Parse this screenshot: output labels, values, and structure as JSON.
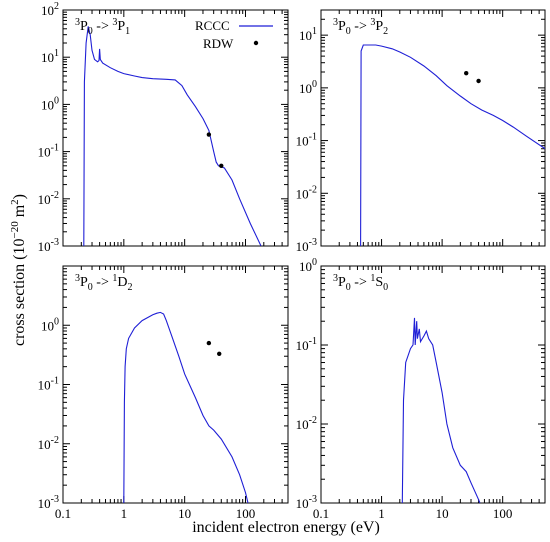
{
  "figure": {
    "xlabel": "incident electron energy (eV)",
    "ylabel_parts": {
      "base": "cross section (10",
      "exp": "−20",
      "mid": " m",
      "exp2": "2",
      "end": ")"
    }
  },
  "legend": {
    "rccc_label": "RCCC",
    "rdw_label": "RDW",
    "line_color": "#1f1fd6",
    "marker_color": "#000000"
  },
  "chart_data": [
    {
      "type": "line",
      "panel": "top-left",
      "label": {
        "a": "3",
        "b": "P",
        "c": "0",
        "arrow": " -> ",
        "d": "3",
        "e": "P",
        "f": "1"
      },
      "x_scale": "log",
      "y_scale": "log",
      "xlim": [
        0.1,
        500
      ],
      "ylim": [
        0.001,
        100
      ],
      "x_ticks": [
        "0.1",
        "1",
        "10",
        "100"
      ],
      "y_ticks": [
        {
          "base": "10",
          "exp": "-3"
        },
        {
          "base": "10",
          "exp": "-2"
        },
        {
          "base": "10",
          "exp": "-1"
        },
        {
          "base": "10",
          "exp": "0"
        },
        {
          "base": "10",
          "exp": "1"
        },
        {
          "base": "10",
          "exp": "2"
        }
      ],
      "series": [
        {
          "name": "RCCC",
          "points": [
            [
              0.22,
              0.001
            ],
            [
              0.225,
              3
            ],
            [
              0.24,
              20
            ],
            [
              0.26,
              45
            ],
            [
              0.28,
              30
            ],
            [
              0.3,
              14
            ],
            [
              0.33,
              9
            ],
            [
              0.37,
              8
            ],
            [
              0.39,
              8.5
            ],
            [
              0.4,
              15
            ],
            [
              0.41,
              9
            ],
            [
              0.45,
              7.5
            ],
            [
              0.6,
              6
            ],
            [
              0.8,
              5
            ],
            [
              1,
              4.5
            ],
            [
              1.5,
              4
            ],
            [
              2,
              3.7
            ],
            [
              3,
              3.5
            ],
            [
              5,
              3.4
            ],
            [
              7,
              3.3
            ],
            [
              9,
              2.5
            ],
            [
              11,
              1.6
            ],
            [
              15,
              0.9
            ],
            [
              20,
              0.5
            ],
            [
              25,
              0.28
            ],
            [
              30,
              0.1
            ],
            [
              33,
              0.06
            ],
            [
              36,
              0.05
            ],
            [
              45,
              0.045
            ],
            [
              60,
              0.025
            ],
            [
              80,
              0.01
            ],
            [
              120,
              0.003
            ],
            [
              180,
              0.001
            ]
          ]
        },
        {
          "name": "RDW",
          "points": [
            [
              25,
              0.23
            ],
            [
              40,
              0.05
            ]
          ]
        }
      ],
      "legend": "top-right",
      "grid": false
    },
    {
      "type": "line",
      "panel": "top-right",
      "label": {
        "a": "3",
        "b": "P",
        "c": "0",
        "arrow": " -> ",
        "d": "3",
        "e": "P",
        "f": "2"
      },
      "x_scale": "log",
      "y_scale": "log",
      "xlim": [
        0.1,
        500
      ],
      "ylim": [
        0.001,
        30
      ],
      "x_ticks": [
        "0.1",
        "1",
        "10",
        "100"
      ],
      "y_ticks": [
        {
          "base": "10",
          "exp": "-3"
        },
        {
          "base": "10",
          "exp": "-2"
        },
        {
          "base": "10",
          "exp": "-1"
        },
        {
          "base": "10",
          "exp": "0"
        },
        {
          "base": "10",
          "exp": "1"
        }
      ],
      "series": [
        {
          "name": "RCCC",
          "points": [
            [
              0.45,
              0.001
            ],
            [
              0.46,
              5
            ],
            [
              0.5,
              6.5
            ],
            [
              0.8,
              6.5
            ],
            [
              1,
              6.2
            ],
            [
              1.5,
              5.5
            ],
            [
              2,
              4.8
            ],
            [
              3,
              3.8
            ],
            [
              5,
              2.6
            ],
            [
              8,
              1.7
            ],
            [
              12,
              1.1
            ],
            [
              20,
              0.7
            ],
            [
              30,
              0.5
            ],
            [
              45,
              0.38
            ],
            [
              70,
              0.3
            ],
            [
              100,
              0.24
            ],
            [
              150,
              0.18
            ],
            [
              250,
              0.12
            ],
            [
              500,
              0.07
            ]
          ]
        },
        {
          "name": "RDW",
          "points": [
            [
              25,
              1.9
            ],
            [
              40,
              1.35
            ]
          ]
        }
      ],
      "grid": false
    },
    {
      "type": "line",
      "panel": "bottom-left",
      "label": {
        "a": "3",
        "b": "P",
        "c": "0",
        "arrow": " -> ",
        "d": "1",
        "e": "D",
        "f": "2"
      },
      "x_scale": "log",
      "y_scale": "log",
      "xlim": [
        0.1,
        500
      ],
      "ylim": [
        0.001,
        10
      ],
      "x_ticks": [
        "0.1",
        "1",
        "10",
        "100"
      ],
      "y_ticks": [
        {
          "base": "10",
          "exp": "-3"
        },
        {
          "base": "10",
          "exp": "-2"
        },
        {
          "base": "10",
          "exp": "-1"
        },
        {
          "base": "10",
          "exp": "0"
        }
      ],
      "series": [
        {
          "name": "RCCC",
          "points": [
            [
              1,
              0.001
            ],
            [
              1.02,
              0.05
            ],
            [
              1.05,
              0.2
            ],
            [
              1.1,
              0.4
            ],
            [
              1.2,
              0.6
            ],
            [
              1.5,
              0.9
            ],
            [
              2,
              1.2
            ],
            [
              3,
              1.5
            ],
            [
              3.5,
              1.6
            ],
            [
              4,
              1.65
            ],
            [
              4.5,
              1.55
            ],
            [
              5,
              1.2
            ],
            [
              6,
              0.7
            ],
            [
              8,
              0.3
            ],
            [
              10,
              0.15
            ],
            [
              15,
              0.06
            ],
            [
              20,
              0.03
            ],
            [
              25,
              0.02
            ],
            [
              30,
              0.017
            ],
            [
              40,
              0.012
            ],
            [
              60,
              0.006
            ],
            [
              80,
              0.003
            ],
            [
              100,
              0.0015
            ],
            [
              110,
              0.001
            ]
          ]
        },
        {
          "name": "RDW",
          "points": [
            [
              25,
              0.5
            ],
            [
              37,
              0.33
            ]
          ]
        }
      ],
      "grid": false
    },
    {
      "type": "line",
      "panel": "bottom-right",
      "label": {
        "a": "3",
        "b": "P",
        "c": "0",
        "arrow": " -> ",
        "d": "1",
        "e": "S",
        "f": "0"
      },
      "x_scale": "log",
      "y_scale": "log",
      "xlim": [
        0.1,
        500
      ],
      "ylim": [
        0.001,
        1
      ],
      "x_ticks": [
        "0.1",
        "1",
        "10",
        "100"
      ],
      "y_ticks": [
        {
          "base": "10",
          "exp": "-3"
        },
        {
          "base": "10",
          "exp": "-2"
        },
        {
          "base": "10",
          "exp": "-1"
        },
        {
          "base": "10",
          "exp": "0"
        }
      ],
      "series": [
        {
          "name": "RCCC",
          "points": [
            [
              2.2,
              0.001
            ],
            [
              2.3,
              0.02
            ],
            [
              2.5,
              0.06
            ],
            [
              3,
              0.09
            ],
            [
              3.3,
              0.1
            ],
            [
              3.5,
              0.22
            ],
            [
              3.6,
              0.1
            ],
            [
              3.8,
              0.2
            ],
            [
              3.9,
              0.12
            ],
            [
              4.2,
              0.16
            ],
            [
              4.4,
              0.11
            ],
            [
              5,
              0.13
            ],
            [
              5.5,
              0.15
            ],
            [
              6,
              0.12
            ],
            [
              7,
              0.1
            ],
            [
              8,
              0.06
            ],
            [
              10,
              0.025
            ],
            [
              12,
              0.01
            ],
            [
              15,
              0.005
            ],
            [
              20,
              0.003
            ],
            [
              25,
              0.0025
            ],
            [
              30,
              0.0018
            ],
            [
              40,
              0.0011
            ],
            [
              42,
              0.001
            ]
          ]
        }
      ],
      "grid": false
    }
  ]
}
